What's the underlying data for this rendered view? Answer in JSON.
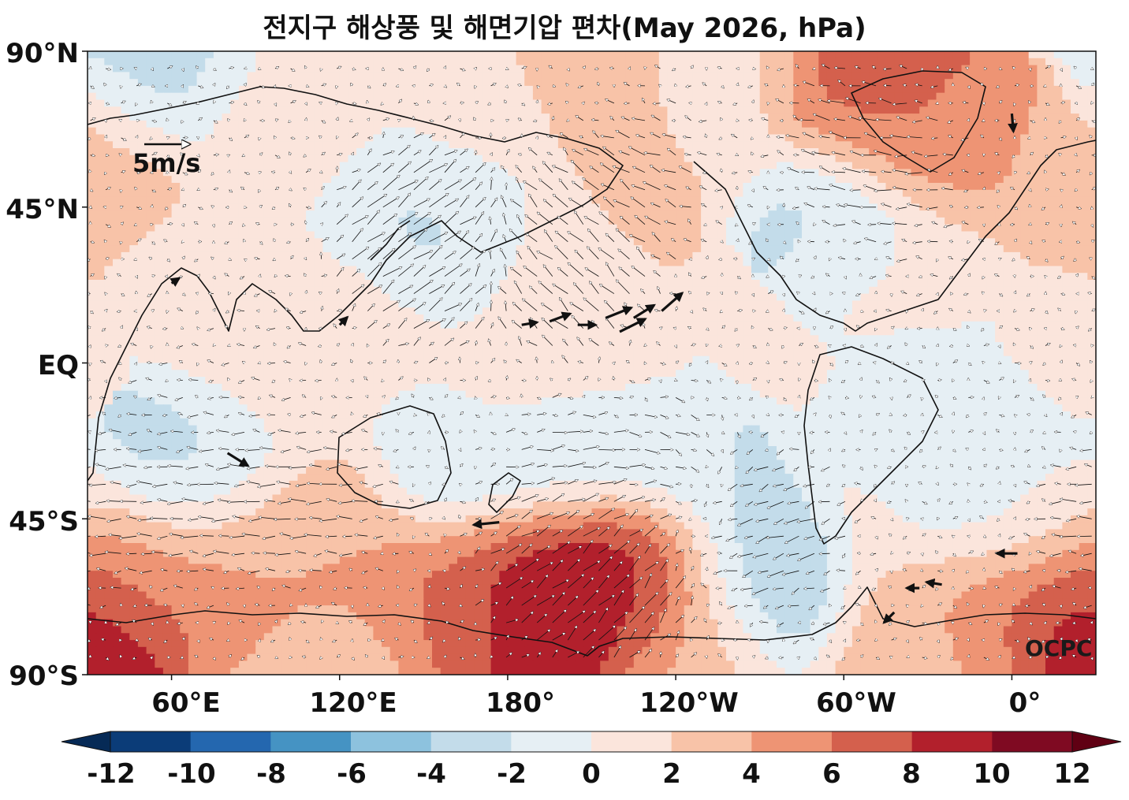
{
  "title": "전지구 해상풍 및 해면기압 편차(May 2026, hPa)",
  "map": {
    "projection": "equirectangular",
    "central_longitude": 180,
    "lat_range": [
      -90,
      90
    ],
    "lat_ticks": [
      {
        "value": 90,
        "label": "90°N"
      },
      {
        "value": 45,
        "label": "45°N"
      },
      {
        "value": 0,
        "label": "EQ"
      },
      {
        "value": -45,
        "label": "45°S"
      },
      {
        "value": -90,
        "label": "90°S"
      }
    ],
    "lon_ticks": [
      {
        "value": 60,
        "label": "60°E"
      },
      {
        "value": 120,
        "label": "120°E"
      },
      {
        "value": 180,
        "label": "180°"
      },
      {
        "value": -120,
        "label": "120°W"
      },
      {
        "value": -60,
        "label": "60°W"
      },
      {
        "value": 0,
        "label": "0°"
      }
    ],
    "reference_vector": {
      "label": "5m/s",
      "speed": 5
    },
    "credit": "OCPC"
  },
  "colorbar": {
    "levels": [
      -12,
      -10,
      -8,
      -6,
      -4,
      -2,
      0,
      2,
      4,
      6,
      8,
      10,
      12
    ],
    "labels": [
      "-12",
      "-10",
      "-8",
      "-6",
      "-4",
      "-2",
      "0",
      "2",
      "4",
      "6",
      "8",
      "10",
      "12"
    ],
    "colors": [
      "#0b3c78",
      "#2467af",
      "#4593c3",
      "#8dc2de",
      "#c3dcea",
      "#e6eff4",
      "#fbe5dc",
      "#f8c3a8",
      "#ee9474",
      "#d4604d",
      "#b2202c",
      "#7f0a22"
    ],
    "extend": "both",
    "under_color": "#062a56",
    "over_color": "#600013"
  },
  "anomalies": [
    {
      "lon": 100,
      "lat": 70,
      "value": 1.5
    },
    {
      "lon": 35,
      "lat": 55,
      "value": 2.5
    },
    {
      "lon": 60,
      "lat": 86,
      "value": -2.5
    },
    {
      "lon": -145,
      "lat": 75,
      "value": 2.5
    },
    {
      "lon": -140,
      "lat": 55,
      "value": 2.5
    },
    {
      "lon": 170,
      "lat": 62,
      "value": 1.5
    },
    {
      "lon": -110,
      "lat": 75,
      "value": 1.5
    },
    {
      "lon": -50,
      "lat": 73,
      "value": 6.5
    },
    {
      "lon": -30,
      "lat": 67,
      "value": 7.0
    },
    {
      "lon": -20,
      "lat": 60,
      "value": 3.5
    },
    {
      "lon": 165,
      "lat": 45,
      "value": -3.0
    },
    {
      "lon": -60,
      "lat": 45,
      "value": -2.5
    },
    {
      "lon": 145,
      "lat": 42,
      "value": -2.0
    },
    {
      "lon": -170,
      "lat": 35,
      "value": 1.0
    },
    {
      "lon": -40,
      "lat": 30,
      "value": 0.5
    },
    {
      "lon": 80,
      "lat": 20,
      "value": 0.8
    },
    {
      "lon": 120,
      "lat": 15,
      "value": 0.8
    },
    {
      "lon": 100,
      "lat": -5,
      "value": 0.8
    },
    {
      "lon": -150,
      "lat": -5,
      "value": 0.6
    },
    {
      "lon": -175,
      "lat": -10,
      "value": 0.5
    },
    {
      "lon": 70,
      "lat": -30,
      "value": -2.5
    },
    {
      "lon": -30,
      "lat": -20,
      "value": -2.0
    },
    {
      "lon": -165,
      "lat": -30,
      "value": -1.5
    },
    {
      "lon": -145,
      "lat": -30,
      "value": -2.5
    },
    {
      "lon": 160,
      "lat": -37,
      "value": -2.5
    },
    {
      "lon": -110,
      "lat": -35,
      "value": -2.0
    },
    {
      "lon": -20,
      "lat": -40,
      "value": -2.5
    },
    {
      "lon": 0,
      "lat": -45,
      "value": -1.5
    },
    {
      "lon": 5,
      "lat": -50,
      "value": 2.5
    },
    {
      "lon": -45,
      "lat": -45,
      "value": 1.0
    },
    {
      "lon": -85,
      "lat": -62,
      "value": -5.0
    },
    {
      "lon": -95,
      "lat": -58,
      "value": -3.0
    },
    {
      "lon": 90,
      "lat": -50,
      "value": 2.5
    },
    {
      "lon": 120,
      "lat": -48,
      "value": 3.0
    },
    {
      "lon": 110,
      "lat": -60,
      "value": 4.0
    },
    {
      "lon": 50,
      "lat": -60,
      "value": 3.0
    },
    {
      "lon": 30,
      "lat": -75,
      "value": 6.0
    },
    {
      "lon": 60,
      "lat": -72,
      "value": 6.5
    },
    {
      "lon": 90,
      "lat": -72,
      "value": 5.5
    },
    {
      "lon": 120,
      "lat": -68,
      "value": 5.5
    },
    {
      "lon": 150,
      "lat": -72,
      "value": 6.0
    },
    {
      "lon": 160,
      "lat": -60,
      "value": 6.5
    },
    {
      "lon": 175,
      "lat": -70,
      "value": 8.5
    },
    {
      "lon": -170,
      "lat": -65,
      "value": 10.0
    },
    {
      "lon": -150,
      "lat": -55,
      "value": 10.0
    },
    {
      "lon": -140,
      "lat": -62,
      "value": 9.5
    },
    {
      "lon": -125,
      "lat": -62,
      "value": 7.5
    },
    {
      "lon": -110,
      "lat": -78,
      "value": 3.0
    },
    {
      "lon": -40,
      "lat": -75,
      "value": 3.0
    },
    {
      "lon": -20,
      "lat": -68,
      "value": 4.0
    },
    {
      "lon": 0,
      "lat": -70,
      "value": 7.0
    },
    {
      "lon": 20,
      "lat": -72,
      "value": 9.5
    },
    {
      "lon": 35,
      "lat": -82,
      "value": 12.5
    },
    {
      "lon": 120,
      "lat": -82,
      "value": 1.0
    },
    {
      "lon": -20,
      "lat": -85,
      "value": 3.5
    },
    {
      "lon": 90,
      "lat": -85,
      "value": 3.0
    }
  ],
  "emphasized_winds": [
    {
      "lon": -175,
      "lat": 11,
      "u": 3,
      "v": 0.5
    },
    {
      "lon": -165,
      "lat": 12,
      "u": 4,
      "v": 1.5
    },
    {
      "lon": -155,
      "lat": 11,
      "u": 3.5,
      "v": 0
    },
    {
      "lon": -145,
      "lat": 13,
      "u": 5,
      "v": 2
    },
    {
      "lon": -140,
      "lat": 9,
      "u": 5,
      "v": 2.5
    },
    {
      "lon": -135,
      "lat": 13,
      "u": 4,
      "v": 2.5
    },
    {
      "lon": -125,
      "lat": 15,
      "u": 4,
      "v": 3.5
    },
    {
      "lon": 80,
      "lat": -26,
      "u": 4,
      "v": -2.5
    },
    {
      "lon": 60,
      "lat": 23,
      "u": 1.5,
      "v": 1
    },
    {
      "lon": 120,
      "lat": 11,
      "u": 1.5,
      "v": 1.5
    },
    {
      "lon": 177,
      "lat": -46,
      "u": -5,
      "v": -0.5
    },
    {
      "lon": 2,
      "lat": -55,
      "u": -4,
      "v": 0
    },
    {
      "lon": -25,
      "lat": -64,
      "u": -3,
      "v": 0.5
    },
    {
      "lon": -33,
      "lat": -65,
      "u": -2.5,
      "v": 0
    },
    {
      "lon": -42,
      "lat": -72,
      "u": -2,
      "v": -2
    },
    {
      "lon": 0,
      "lat": 72,
      "u": 0.3,
      "v": -3.5
    }
  ],
  "plotted_winds": [
    {
      "lon": -170,
      "lat": 30,
      "u": -3,
      "v": 2
    },
    {
      "lon": -160,
      "lat": 28,
      "u": -3,
      "v": 2
    },
    {
      "lon": -150,
      "lat": 32,
      "u": -2,
      "v": 3
    },
    {
      "lon": 150,
      "lat": 35,
      "u": 4,
      "v": 2
    },
    {
      "lon": 160,
      "lat": 30,
      "u": 3,
      "v": 2
    },
    {
      "lon": 140,
      "lat": 35,
      "u": 3,
      "v": 3
    },
    {
      "lon": -130,
      "lat": 55,
      "u": -3,
      "v": 1
    },
    {
      "lon": -40,
      "lat": 55,
      "u": -3,
      "v": 0
    },
    {
      "lon": -60,
      "lat": 65,
      "u": -3,
      "v": 1
    },
    {
      "lon": 120,
      "lat": -40,
      "u": -3,
      "v": 0
    },
    {
      "lon": 90,
      "lat": -40,
      "u": -3,
      "v": 0
    },
    {
      "lon": 60,
      "lat": -40,
      "u": -3,
      "v": 0
    },
    {
      "lon": 30,
      "lat": -45,
      "u": -3,
      "v": 0
    },
    {
      "lon": -100,
      "lat": -45,
      "u": -3,
      "v": -1
    },
    {
      "lon": -80,
      "lat": -50,
      "u": -3,
      "v": -1
    },
    {
      "lon": -170,
      "lat": -58,
      "u": 3,
      "v": 2
    },
    {
      "lon": -150,
      "lat": -65,
      "u": 3,
      "v": 3
    },
    {
      "lon": -130,
      "lat": -60,
      "u": 2,
      "v": 3
    },
    {
      "lon": -160,
      "lat": -30,
      "u": 3,
      "v": 0
    },
    {
      "lon": -120,
      "lat": -30,
      "u": 3,
      "v": -1
    },
    {
      "lon": 60,
      "lat": -10,
      "u": -1,
      "v": 0
    },
    {
      "lon": 100,
      "lat": 10,
      "u": -1,
      "v": 0
    },
    {
      "lon": -20,
      "lat": 20,
      "u": -1,
      "v": 0
    },
    {
      "lon": -10,
      "lat": 5,
      "u": 1,
      "v": 0
    }
  ]
}
